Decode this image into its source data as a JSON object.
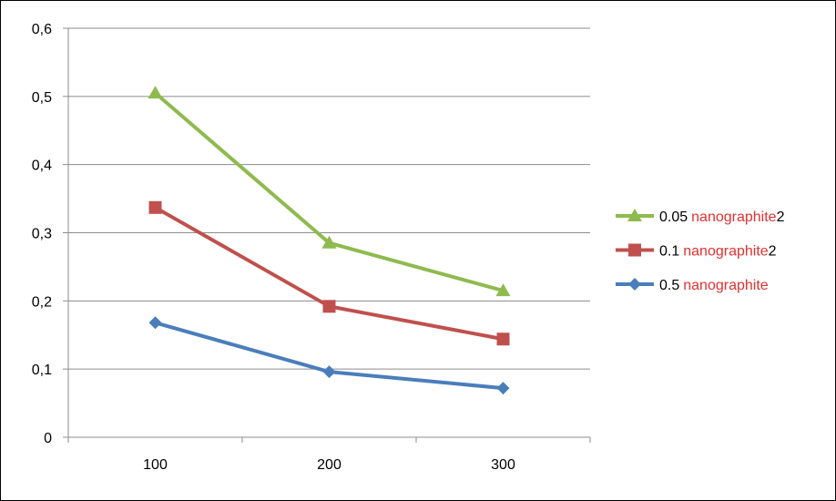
{
  "chart_data": {
    "type": "line",
    "title": "",
    "xlabel": "",
    "ylabel": "",
    "categories": [
      "100",
      "200",
      "300"
    ],
    "ylim": [
      0,
      0.6
    ],
    "y_ticks": [
      "0",
      "0,1",
      "0,2",
      "0,3",
      "0,4",
      "0,5",
      "0,6"
    ],
    "grid": true,
    "legend_position": "right",
    "series": [
      {
        "legend_number": "0.05",
        "legend_word": "nanographite",
        "legend_suffix": "2",
        "marker": "triangle",
        "color": "#8fba4f",
        "values": [
          0.505,
          0.285,
          0.215
        ]
      },
      {
        "legend_number": "0.1",
        "legend_word": "nanographite",
        "legend_suffix": "2",
        "marker": "square",
        "color": "#c0504d",
        "values": [
          0.337,
          0.192,
          0.144
        ]
      },
      {
        "legend_number": "0.5",
        "legend_word": "nanographite",
        "legend_suffix": "",
        "marker": "diamond",
        "color": "#4a7ebb",
        "values": [
          0.168,
          0.096,
          0.072
        ]
      }
    ]
  }
}
